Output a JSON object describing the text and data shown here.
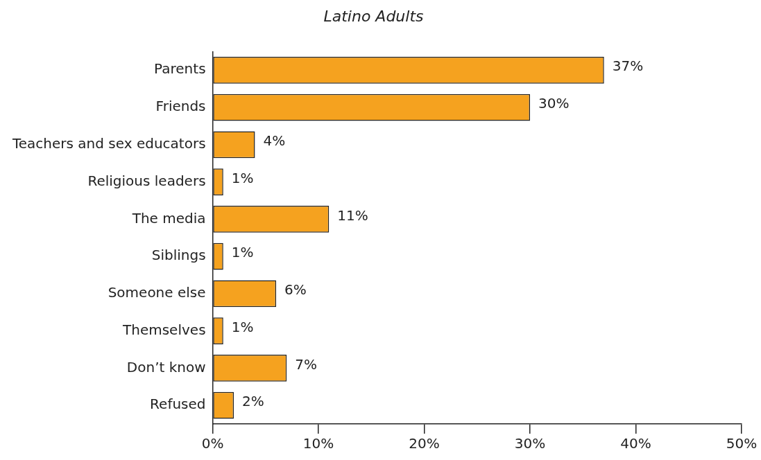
{
  "chart_data": {
    "type": "bar",
    "orientation": "horizontal",
    "title": "Latino Adults",
    "categories": [
      "Parents",
      "Friends",
      "Teachers and sex educators",
      "Religious leaders",
      "The media",
      "Siblings",
      "Someone else",
      "Themselves",
      "Don’t know",
      "Refused"
    ],
    "values": [
      37,
      30,
      4,
      1,
      11,
      1,
      6,
      1,
      7,
      2
    ],
    "value_labels": [
      "37%",
      "30%",
      "4%",
      "1%",
      "11%",
      "1%",
      "6%",
      "1%",
      "7%",
      "2%"
    ],
    "color": "#f5a21f",
    "xlim": [
      0,
      50
    ],
    "xticks": [
      {
        "value": 0,
        "label": "0%"
      },
      {
        "value": 10,
        "label": "10%"
      },
      {
        "value": 20,
        "label": "20%"
      },
      {
        "value": 30,
        "label": "30%"
      },
      {
        "value": 40,
        "label": "40%"
      },
      {
        "value": 50,
        "label": "50%"
      }
    ],
    "grid": false,
    "legend": false
  }
}
